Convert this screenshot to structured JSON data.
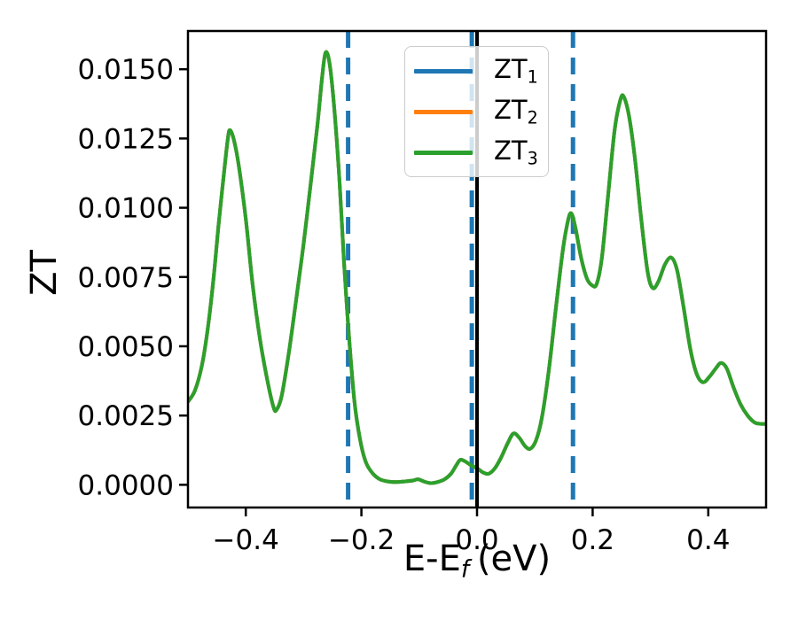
{
  "figure": {
    "background": "#ffffff",
    "text_color": "#000000"
  },
  "chart_data": {
    "type": "line",
    "title": "",
    "xlabel": {
      "prefix": "E-E",
      "sub": "f",
      "suffix": "(eV)"
    },
    "ylabel": "ZT",
    "xlim": [
      -0.5,
      0.5
    ],
    "ylim": [
      -0.00082,
      0.01638
    ],
    "grid": false,
    "xticks": {
      "values": [
        -0.4,
        -0.2,
        0.0,
        0.2,
        0.4
      ],
      "labels": [
        "−0.4",
        "−0.2",
        "0.0",
        "0.2",
        "0.4"
      ]
    },
    "yticks": {
      "values": [
        0.0,
        0.0025,
        0.005,
        0.0075,
        0.01,
        0.0125,
        0.015
      ],
      "labels": [
        "0.0000",
        "0.0025",
        "0.0050",
        "0.0075",
        "0.0100",
        "0.0125",
        "0.0150"
      ]
    },
    "vlines_dashed": [
      {
        "x": -0.223,
        "color": "#1f77b4",
        "style": "dashed"
      },
      {
        "x": -0.009,
        "color": "#1f77b4",
        "style": "dashed"
      },
      {
        "x": 0.166,
        "color": "#1f77b4",
        "style": "dashed"
      }
    ],
    "vlines_solid": [
      {
        "x": 0.0,
        "color": "#000000",
        "style": "solid"
      }
    ],
    "legend": {
      "position": "upper center",
      "entries": [
        {
          "label": "ZT",
          "sub": "1",
          "color": "#1f77b4"
        },
        {
          "label": "ZT",
          "sub": "2",
          "color": "#ff7f0e"
        },
        {
          "label": "ZT",
          "sub": "3",
          "color": "#2ca02c"
        }
      ]
    },
    "series": [
      {
        "name": "ZT1",
        "color": "#1f77b4",
        "visible_separately": false,
        "coincides_with": "ZT3"
      },
      {
        "name": "ZT2",
        "color": "#ff7f0e",
        "visible_separately": false,
        "coincides_with": "ZT3"
      },
      {
        "name": "ZT3",
        "color": "#2ca02c",
        "points": [
          [
            -0.5,
            0.003
          ],
          [
            -0.488,
            0.0034
          ],
          [
            -0.476,
            0.0043
          ],
          [
            -0.466,
            0.0056
          ],
          [
            -0.456,
            0.0074
          ],
          [
            -0.447,
            0.0094
          ],
          [
            -0.439,
            0.011
          ],
          [
            -0.431,
            0.0125
          ],
          [
            -0.427,
            0.0128
          ],
          [
            -0.42,
            0.0124
          ],
          [
            -0.412,
            0.0115
          ],
          [
            -0.4,
            0.0096
          ],
          [
            -0.388,
            0.0072
          ],
          [
            -0.375,
            0.0052
          ],
          [
            -0.362,
            0.0037
          ],
          [
            -0.352,
            0.0028
          ],
          [
            -0.347,
            0.0027
          ],
          [
            -0.338,
            0.0032
          ],
          [
            -0.326,
            0.0047
          ],
          [
            -0.314,
            0.0065
          ],
          [
            -0.3,
            0.0087
          ],
          [
            -0.287,
            0.011
          ],
          [
            -0.276,
            0.013
          ],
          [
            -0.268,
            0.0147
          ],
          [
            -0.262,
            0.0156
          ],
          [
            -0.255,
            0.0152
          ],
          [
            -0.247,
            0.0136
          ],
          [
            -0.238,
            0.011
          ],
          [
            -0.23,
            0.008
          ],
          [
            -0.222,
            0.0055
          ],
          [
            -0.212,
            0.003
          ],
          [
            -0.202,
            0.0016
          ],
          [
            -0.192,
            0.0008
          ],
          [
            -0.18,
            0.0004
          ],
          [
            -0.168,
            0.0002
          ],
          [
            -0.154,
            0.00012
          ],
          [
            -0.14,
            0.0001
          ],
          [
            -0.126,
            0.00012
          ],
          [
            -0.112,
            0.00015
          ],
          [
            -0.102,
            0.0002
          ],
          [
            -0.092,
            0.00012
          ],
          [
            -0.08,
            6e-05
          ],
          [
            -0.068,
            0.0001
          ],
          [
            -0.056,
            0.0002
          ],
          [
            -0.045,
            0.0004
          ],
          [
            -0.036,
            0.0007
          ],
          [
            -0.029,
            0.0009
          ],
          [
            -0.021,
            0.00085
          ],
          [
            -0.01,
            0.0007
          ],
          [
            0.0,
            0.0006
          ],
          [
            0.01,
            0.00045
          ],
          [
            0.02,
            0.0004
          ],
          [
            0.031,
            0.0006
          ],
          [
            0.042,
            0.001
          ],
          [
            0.053,
            0.0015
          ],
          [
            0.063,
            0.00185
          ],
          [
            0.073,
            0.0017
          ],
          [
            0.083,
            0.0014
          ],
          [
            0.092,
            0.0013
          ],
          [
            0.102,
            0.0016
          ],
          [
            0.112,
            0.0024
          ],
          [
            0.124,
            0.0041
          ],
          [
            0.136,
            0.0063
          ],
          [
            0.148,
            0.0084
          ],
          [
            0.157,
            0.0095
          ],
          [
            0.163,
            0.0098
          ],
          [
            0.17,
            0.0093
          ],
          [
            0.18,
            0.0082
          ],
          [
            0.19,
            0.00745
          ],
          [
            0.199,
            0.0072
          ],
          [
            0.207,
            0.00725
          ],
          [
            0.216,
            0.0082
          ],
          [
            0.227,
            0.0105
          ],
          [
            0.238,
            0.0128
          ],
          [
            0.248,
            0.0139
          ],
          [
            0.254,
            0.014
          ],
          [
            0.263,
            0.0133
          ],
          [
            0.273,
            0.0118
          ],
          [
            0.284,
            0.0096
          ],
          [
            0.295,
            0.0077
          ],
          [
            0.304,
            0.0071
          ],
          [
            0.314,
            0.00735
          ],
          [
            0.325,
            0.00795
          ],
          [
            0.336,
            0.0082
          ],
          [
            0.346,
            0.00775
          ],
          [
            0.357,
            0.00645
          ],
          [
            0.369,
            0.0049
          ],
          [
            0.38,
            0.004
          ],
          [
            0.391,
            0.0037
          ],
          [
            0.402,
            0.0039
          ],
          [
            0.413,
            0.0042
          ],
          [
            0.422,
            0.0044
          ],
          [
            0.432,
            0.0042
          ],
          [
            0.444,
            0.0035
          ],
          [
            0.456,
            0.0029
          ],
          [
            0.468,
            0.0025
          ],
          [
            0.48,
            0.00225
          ],
          [
            0.49,
            0.0022
          ],
          [
            0.5,
            0.0022
          ]
        ]
      }
    ]
  }
}
